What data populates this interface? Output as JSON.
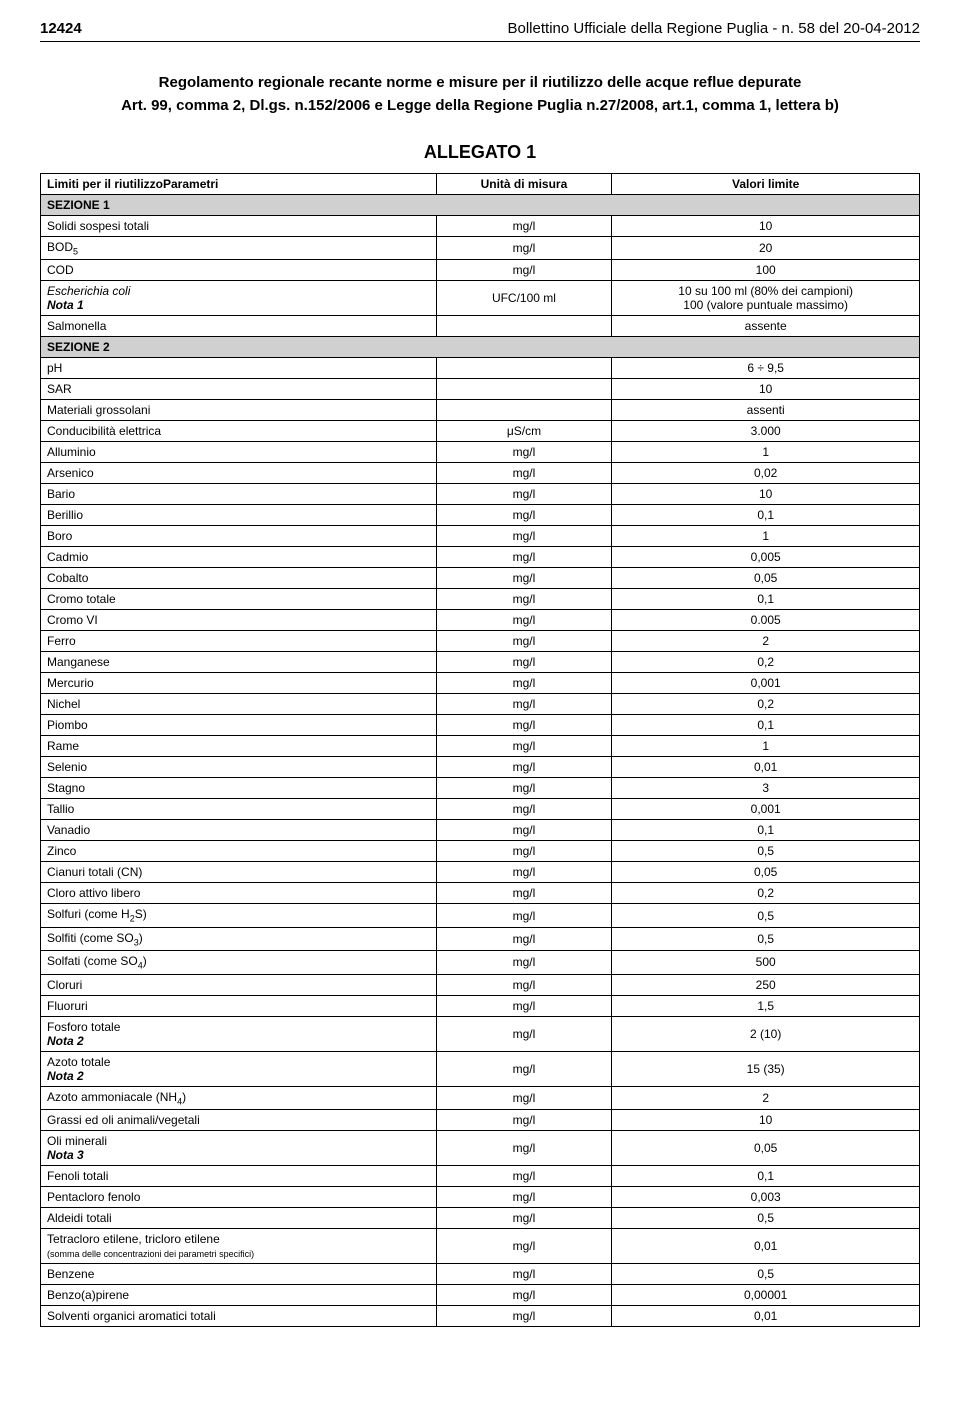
{
  "header": {
    "page_number": "12424",
    "bulletin": "Bollettino Ufficiale della Regione Puglia - n. 58 del 20-04-2012"
  },
  "title": {
    "line1": "Regolamento regionale recante norme e misure per il riutilizzo delle acque reflue depurate",
    "line2": "Art. 99, comma 2, Dl.gs. n.152/2006 e Legge della Regione Puglia n.27/2008, art.1, comma 1, lettera b)"
  },
  "allegato": "ALLEGATO 1",
  "table": {
    "header": {
      "col1": "Limiti per il riutilizzoParametri",
      "col2": "Unità di misura",
      "col3": "Valori limite"
    },
    "section1_label": "SEZIONE 1",
    "section2_label": "SEZIONE 2",
    "section1": [
      {
        "param": "Solidi sospesi totali",
        "unit": "mg/l",
        "value": "10"
      },
      {
        "param": "BOD",
        "sub": "5",
        "unit": "mg/l",
        "value": "20"
      },
      {
        "param": "COD",
        "unit": "mg/l",
        "value": "100"
      },
      {
        "param": "Escherichia coli",
        "note": "Nota 1",
        "italic": true,
        "unit": "UFC/100 ml",
        "value": "10 su 100 ml (80% dei campioni)\n100 (valore puntuale massimo)"
      },
      {
        "param": "Salmonella",
        "unit": "",
        "value": "assente"
      }
    ],
    "section2": [
      {
        "param": "pH",
        "unit": "",
        "value": "6 ÷ 9,5"
      },
      {
        "param": "SAR",
        "unit": "",
        "value": "10"
      },
      {
        "param": "Materiali grossolani",
        "unit": "",
        "value": "assenti"
      },
      {
        "param": "Conducibilità elettrica",
        "unit": "μS/cm",
        "value": "3.000"
      },
      {
        "param": "Alluminio",
        "unit": "mg/l",
        "value": "1"
      },
      {
        "param": "Arsenico",
        "unit": "mg/l",
        "value": "0,02"
      },
      {
        "param": "Bario",
        "unit": "mg/l",
        "value": "10"
      },
      {
        "param": "Berillio",
        "unit": "mg/l",
        "value": "0,1"
      },
      {
        "param": "Boro",
        "unit": "mg/l",
        "value": "1"
      },
      {
        "param": "Cadmio",
        "unit": "mg/l",
        "value": "0,005"
      },
      {
        "param": "Cobalto",
        "unit": "mg/l",
        "value": "0,05"
      },
      {
        "param": "Cromo totale",
        "unit": "mg/l",
        "value": "0,1"
      },
      {
        "param": "Cromo VI",
        "unit": "mg/l",
        "value": "0.005"
      },
      {
        "param": "Ferro",
        "unit": "mg/l",
        "value": "2"
      },
      {
        "param": "Manganese",
        "unit": "mg/l",
        "value": "0,2"
      },
      {
        "param": "Mercurio",
        "unit": "mg/l",
        "value": "0,001"
      },
      {
        "param": "Nichel",
        "unit": "mg/l",
        "value": "0,2"
      },
      {
        "param": "Piombo",
        "unit": "mg/l",
        "value": "0,1"
      },
      {
        "param": "Rame",
        "unit": "mg/l",
        "value": "1"
      },
      {
        "param": "Selenio",
        "unit": "mg/l",
        "value": "0,01"
      },
      {
        "param": "Stagno",
        "unit": "mg/l",
        "value": "3"
      },
      {
        "param": "Tallio",
        "unit": "mg/l",
        "value": "0,001"
      },
      {
        "param": "Vanadio",
        "unit": "mg/l",
        "value": "0,1"
      },
      {
        "param": "Zinco",
        "unit": "mg/l",
        "value": "0,5"
      },
      {
        "param": "Cianuri totali (CN)",
        "unit": "mg/l",
        "value": "0,05"
      },
      {
        "param": "Cloro attivo libero",
        "unit": "mg/l",
        "value": "0,2"
      },
      {
        "param": "Solfuri (come H",
        "sub": "2",
        "param_after": "S)",
        "unit": "mg/l",
        "value": "0,5"
      },
      {
        "param": "Solfiti (come SO",
        "sub": "3",
        "param_after": ")",
        "unit": "mg/l",
        "value": "0,5"
      },
      {
        "param": "Solfati (come SO",
        "sub": "4",
        "param_after": ")",
        "unit": "mg/l",
        "value": "500"
      },
      {
        "param": "Cloruri",
        "unit": "mg/l",
        "value": "250"
      },
      {
        "param": "Fluoruri",
        "unit": "mg/l",
        "value": "1,5"
      },
      {
        "param": "Fosforo totale",
        "note": "Nota 2",
        "unit": "mg/l",
        "value": "2 (10)"
      },
      {
        "param": "Azoto totale",
        "note": "Nota 2",
        "unit": "mg/l",
        "value": "15 (35)"
      },
      {
        "param": "Azoto ammoniacale (NH",
        "sub": "4",
        "param_after": ")",
        "unit": "mg/l",
        "value": "2"
      },
      {
        "param": "Grassi ed oli animali/vegetali",
        "unit": "mg/l",
        "value": "10"
      },
      {
        "param": "Oli minerali",
        "note": "Nota 3",
        "unit": "mg/l",
        "value": "0,05"
      },
      {
        "param": "Fenoli  totali",
        "unit": "mg/l",
        "value": "0,1"
      },
      {
        "param": "Pentacloro  fenolo",
        "unit": "mg/l",
        "value": "0,003"
      },
      {
        "param": "Aldeidi totali",
        "unit": "mg/l",
        "value": "0,5"
      },
      {
        "param": "Tetracloro etilene, tricloro etilene",
        "small_note": "(somma delle concentrazioni dei parametri specifici)",
        "unit": "mg/l",
        "value": "0,01"
      },
      {
        "param": "Benzene",
        "unit": "mg/l",
        "value": "0,5"
      },
      {
        "param": "Benzo(a)pirene",
        "unit": "mg/l",
        "value": "0,00001"
      },
      {
        "param": "Solventi organici aromatici totali",
        "unit": "mg/l",
        "value": "0,01"
      }
    ]
  },
  "styles": {
    "background_color": "#ffffff",
    "text_color": "#000000",
    "section_bg": "#d0d0d0",
    "border_color": "#000000",
    "body_font_size": 13,
    "table_font_size": 12,
    "title_font_size": 15,
    "allegato_font_size": 18
  }
}
